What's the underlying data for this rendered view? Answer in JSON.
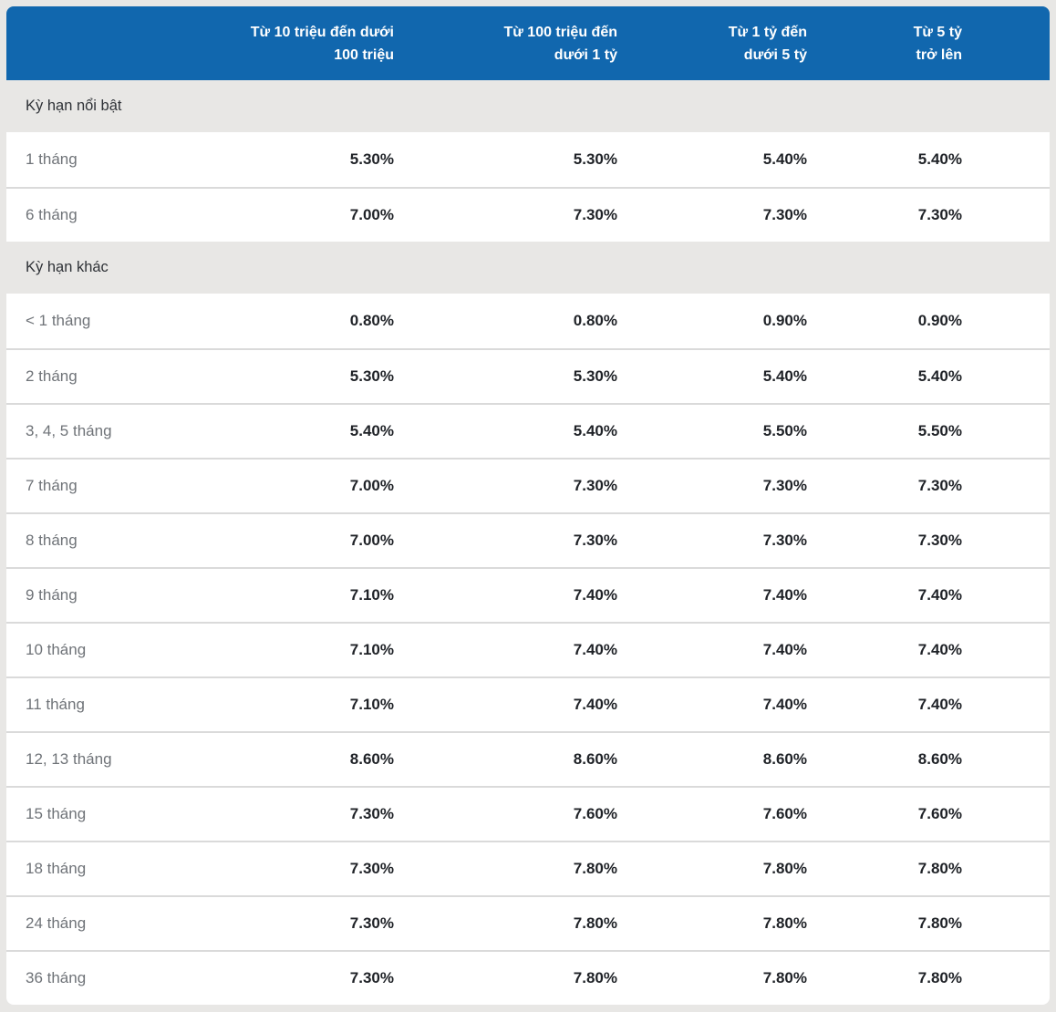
{
  "colors": {
    "header_bg": "#1167ae",
    "page_bg": "#e8e7e5",
    "row_bg": "#ffffff",
    "divider": "#dadada",
    "label_text": "#6f7378",
    "value_text": "#1f2227",
    "section_text": "#2f3237",
    "header_text": "#ffffff"
  },
  "table": {
    "columns": [
      "Từ 10 triệu đến dưới\n100 triệu",
      "Từ 100 triệu đến\ndưới 1 tỷ",
      "Từ 1 tỷ đến\ndưới 5 tỷ",
      "Từ 5 tỷ\ntrở lên"
    ],
    "sections": [
      {
        "title": "Kỳ hạn nổi bật",
        "rows": [
          {
            "label": "1 tháng",
            "values": [
              "5.30%",
              "5.30%",
              "5.40%",
              "5.40%"
            ]
          },
          {
            "label": "6 tháng",
            "values": [
              "7.00%",
              "7.30%",
              "7.30%",
              "7.30%"
            ]
          }
        ]
      },
      {
        "title": "Kỳ hạn khác",
        "rows": [
          {
            "label": "< 1 tháng",
            "values": [
              "0.80%",
              "0.80%",
              "0.90%",
              "0.90%"
            ]
          },
          {
            "label": "2 tháng",
            "values": [
              "5.30%",
              "5.30%",
              "5.40%",
              "5.40%"
            ]
          },
          {
            "label": "3, 4, 5 tháng",
            "values": [
              "5.40%",
              "5.40%",
              "5.50%",
              "5.50%"
            ]
          },
          {
            "label": "7 tháng",
            "values": [
              "7.00%",
              "7.30%",
              "7.30%",
              "7.30%"
            ]
          },
          {
            "label": "8 tháng",
            "values": [
              "7.00%",
              "7.30%",
              "7.30%",
              "7.30%"
            ]
          },
          {
            "label": "9 tháng",
            "values": [
              "7.10%",
              "7.40%",
              "7.40%",
              "7.40%"
            ]
          },
          {
            "label": "10 tháng",
            "values": [
              "7.10%",
              "7.40%",
              "7.40%",
              "7.40%"
            ]
          },
          {
            "label": "11 tháng",
            "values": [
              "7.10%",
              "7.40%",
              "7.40%",
              "7.40%"
            ]
          },
          {
            "label": "12, 13 tháng",
            "values": [
              "8.60%",
              "8.60%",
              "8.60%",
              "8.60%"
            ]
          },
          {
            "label": "15 tháng",
            "values": [
              "7.30%",
              "7.60%",
              "7.60%",
              "7.60%"
            ]
          },
          {
            "label": "18 tháng",
            "values": [
              "7.30%",
              "7.80%",
              "7.80%",
              "7.80%"
            ]
          },
          {
            "label": "24 tháng",
            "values": [
              "7.30%",
              "7.80%",
              "7.80%",
              "7.80%"
            ]
          },
          {
            "label": "36 tháng",
            "values": [
              "7.30%",
              "7.80%",
              "7.80%",
              "7.80%"
            ]
          }
        ]
      }
    ]
  }
}
